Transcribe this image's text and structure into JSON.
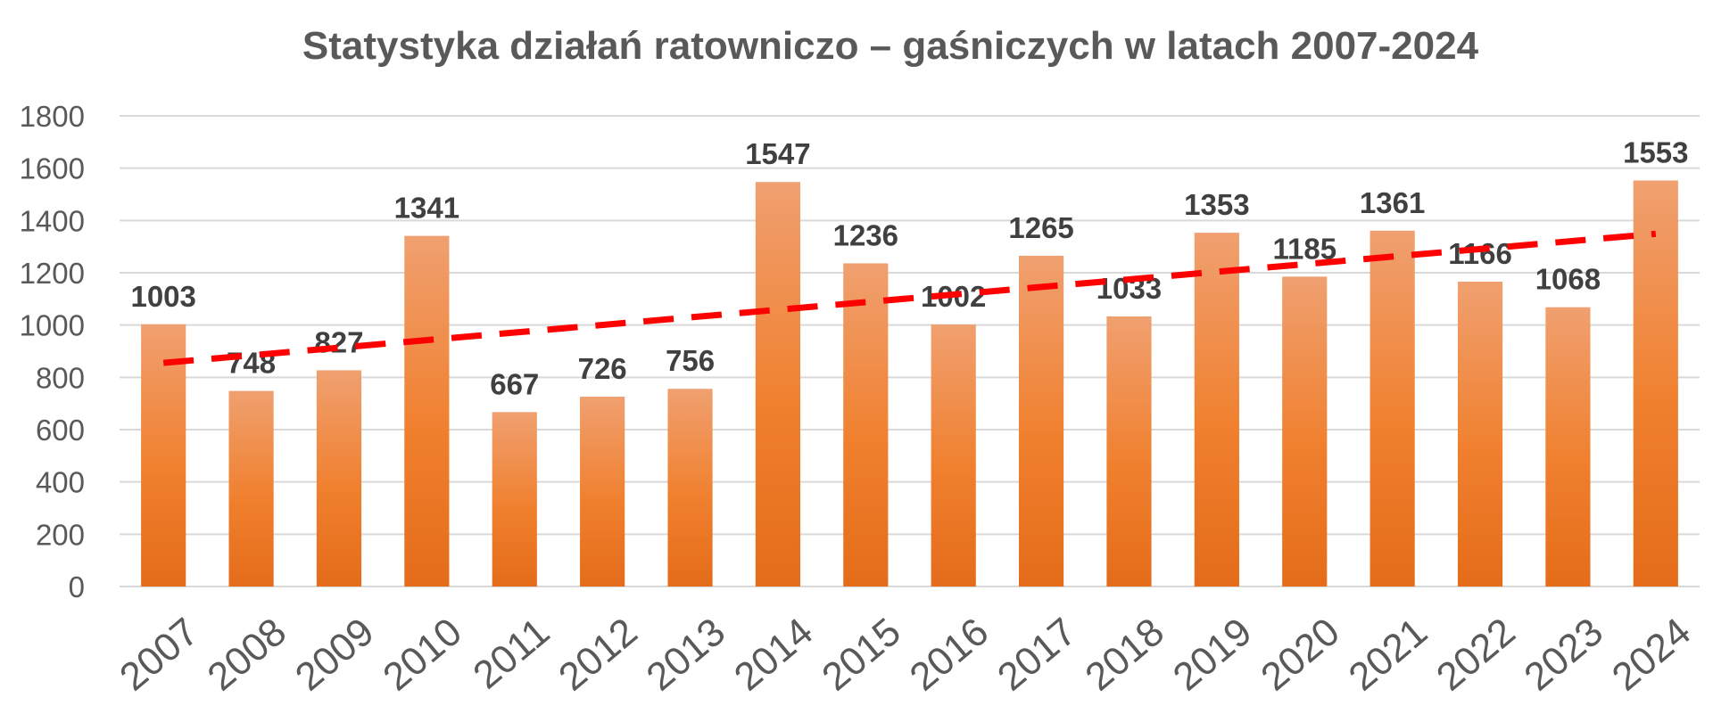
{
  "chart_data": {
    "type": "bar",
    "title": "Statystyka działań ratowniczo – gaśniczych w latach 2007-2024",
    "categories": [
      "2007",
      "2008",
      "2009",
      "2010",
      "2011",
      "2012",
      "2013",
      "2014",
      "2015",
      "2016",
      "2017",
      "2018",
      "2019",
      "2020",
      "2021",
      "2022",
      "2023",
      "2024"
    ],
    "values": [
      1003,
      748,
      827,
      1341,
      667,
      726,
      756,
      1547,
      1236,
      1002,
      1265,
      1033,
      1353,
      1185,
      1361,
      1166,
      1068,
      1553
    ],
    "ylim": [
      0,
      1800
    ],
    "yticks": [
      0,
      200,
      400,
      600,
      800,
      1000,
      1200,
      1400,
      1600,
      1800
    ],
    "grid": true,
    "trendline": {
      "type": "linear",
      "style": "dashed",
      "color": "#ff0000"
    },
    "bar_color_top": "#f0a070",
    "bar_color_bottom": "#e46c1a",
    "data_labels": true
  }
}
